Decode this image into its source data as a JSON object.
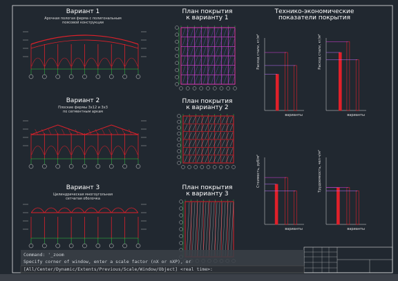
{
  "drawing": {
    "sections": [
      {
        "title": "Вариант 1",
        "subtitle": [
          "Арочная пологая ферма с полигональным",
          "поясовой конструкции"
        ]
      },
      {
        "title": "Вариант 2",
        "subtitle": [
          "Плоские фермы 3х12 и 3х3",
          "по сегментным аркам"
        ]
      },
      {
        "title": "Вариант 3",
        "subtitle": [
          "Цилиндрическая многоугольная",
          "сетчатая оболочка"
        ]
      }
    ],
    "plans": [
      {
        "title": [
          "План покрытия",
          "к варианту 1"
        ]
      },
      {
        "title": [
          "План покрытия",
          "к варианту 2"
        ]
      },
      {
        "title": [
          "План покрытия",
          "к варианту 3"
        ]
      }
    ],
    "tep": {
      "title": [
        "Технико-экономические",
        "показатели покрытия"
      ],
      "charts": [
        {
          "ylabel": "Расход стали, кг/м²",
          "xlabel": "варианты"
        },
        {
          "ylabel": "Расход стали, кг/м²",
          "xlabel": "варианты"
        },
        {
          "ylabel": "Стоимость, руб/м²",
          "xlabel": "варианты"
        },
        {
          "ylabel": "Трудоемкость, чел·ч/м²",
          "xlabel": "варианты"
        }
      ]
    }
  },
  "command_line": {
    "history": [
      "Command: '_zoom",
      "Specify corner of window, enter a scale factor (nX or nXP), or"
    ],
    "prompt": "[All/Center/Dynamic/Extents/Previous/Scale/Window/Object] <real time>:"
  }
}
